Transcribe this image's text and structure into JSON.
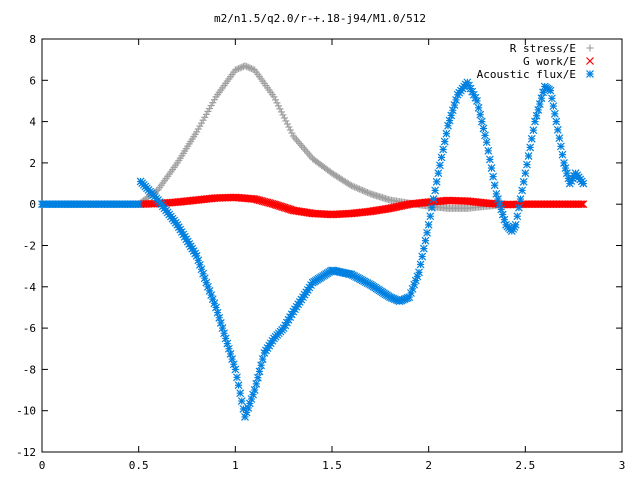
{
  "chart_data": {
    "type": "scatter",
    "title": "m2/n1.5/q2.0/r-+.18-j94/M1.0/512",
    "xlabel": "",
    "ylabel": "",
    "xlim": [
      0,
      3
    ],
    "ylim": [
      -12,
      8
    ],
    "x_ticks": [
      0,
      0.5,
      1,
      1.5,
      2,
      2.5,
      3
    ],
    "y_ticks": [
      -12,
      -10,
      -8,
      -6,
      -4,
      -2,
      0,
      2,
      4,
      6,
      8
    ],
    "x_tick_labels": [
      "0",
      "0.5",
      "1",
      "1.5",
      "2",
      "2.5",
      "3"
    ],
    "y_tick_labels": [
      "-12",
      "-10",
      "-8",
      "-6",
      "-4",
      "-2",
      "0",
      "2",
      "4",
      "6",
      "8"
    ],
    "grid": false,
    "legend_position": "top-right",
    "series": [
      {
        "name": "R stress/E",
        "color": "#a0a0a0",
        "marker": "plus",
        "points": [
          [
            0.5,
            0.0
          ],
          [
            0.6,
            0.7
          ],
          [
            0.7,
            2.0
          ],
          [
            0.8,
            3.5
          ],
          [
            0.9,
            5.2
          ],
          [
            1.0,
            6.5
          ],
          [
            1.05,
            6.7
          ],
          [
            1.1,
            6.5
          ],
          [
            1.2,
            5.2
          ],
          [
            1.3,
            3.3
          ],
          [
            1.4,
            2.2
          ],
          [
            1.5,
            1.5
          ],
          [
            1.6,
            0.9
          ],
          [
            1.7,
            0.5
          ],
          [
            1.8,
            0.2
          ],
          [
            1.9,
            0.05
          ],
          [
            2.0,
            -0.1
          ],
          [
            2.1,
            -0.2
          ],
          [
            2.2,
            -0.2
          ],
          [
            2.3,
            -0.1
          ],
          [
            2.4,
            0.0
          ]
        ]
      },
      {
        "name": "G work/E",
        "color": "#ff0000",
        "marker": "cross",
        "points": [
          [
            0.5,
            0.0
          ],
          [
            0.6,
            0.03
          ],
          [
            0.7,
            0.1
          ],
          [
            0.8,
            0.2
          ],
          [
            0.9,
            0.3
          ],
          [
            1.0,
            0.33
          ],
          [
            1.1,
            0.25
          ],
          [
            1.2,
            0.0
          ],
          [
            1.3,
            -0.3
          ],
          [
            1.4,
            -0.45
          ],
          [
            1.5,
            -0.5
          ],
          [
            1.6,
            -0.45
          ],
          [
            1.7,
            -0.35
          ],
          [
            1.8,
            -0.2
          ],
          [
            1.9,
            0.0
          ],
          [
            2.0,
            0.1
          ],
          [
            2.1,
            0.18
          ],
          [
            2.2,
            0.15
          ],
          [
            2.3,
            0.05
          ],
          [
            2.4,
            -0.02
          ],
          [
            2.5,
            0.0
          ],
          [
            2.6,
            0.0
          ],
          [
            2.7,
            0.0
          ],
          [
            2.8,
            0.0
          ]
        ]
      },
      {
        "name": "Acoustic flux/E",
        "color": "#0080e0",
        "marker": "star",
        "points": [
          [
            0.0,
            0.0
          ],
          [
            0.1,
            0.0
          ],
          [
            0.2,
            0.0
          ],
          [
            0.3,
            0.0
          ],
          [
            0.4,
            0.0
          ],
          [
            0.5,
            0.0
          ],
          [
            0.51,
            1.1
          ],
          [
            0.6,
            0.2
          ],
          [
            0.7,
            -1.0
          ],
          [
            0.8,
            -2.5
          ],
          [
            0.85,
            -3.8
          ],
          [
            0.9,
            -5.0
          ],
          [
            0.95,
            -6.5
          ],
          [
            1.0,
            -8.0
          ],
          [
            1.05,
            -10.3
          ],
          [
            1.1,
            -9.0
          ],
          [
            1.15,
            -7.2
          ],
          [
            1.2,
            -6.5
          ],
          [
            1.25,
            -6.0
          ],
          [
            1.3,
            -5.2
          ],
          [
            1.4,
            -3.8
          ],
          [
            1.5,
            -3.2
          ],
          [
            1.6,
            -3.4
          ],
          [
            1.7,
            -3.9
          ],
          [
            1.8,
            -4.5
          ],
          [
            1.85,
            -4.7
          ],
          [
            1.9,
            -4.5
          ],
          [
            1.95,
            -3.3
          ],
          [
            2.0,
            -1.0
          ],
          [
            2.05,
            1.5
          ],
          [
            2.1,
            3.8
          ],
          [
            2.15,
            5.3
          ],
          [
            2.2,
            5.9
          ],
          [
            2.25,
            5.0
          ],
          [
            2.3,
            3.0
          ],
          [
            2.35,
            0.5
          ],
          [
            2.4,
            -1.0
          ],
          [
            2.43,
            -1.3
          ],
          [
            2.45,
            -1.0
          ],
          [
            2.5,
            1.5
          ],
          [
            2.55,
            4.0
          ],
          [
            2.6,
            5.7
          ],
          [
            2.63,
            5.5
          ],
          [
            2.66,
            4.0
          ],
          [
            2.7,
            2.0
          ],
          [
            2.73,
            1.0
          ],
          [
            2.76,
            1.5
          ],
          [
            2.8,
            1.0
          ]
        ]
      }
    ]
  }
}
